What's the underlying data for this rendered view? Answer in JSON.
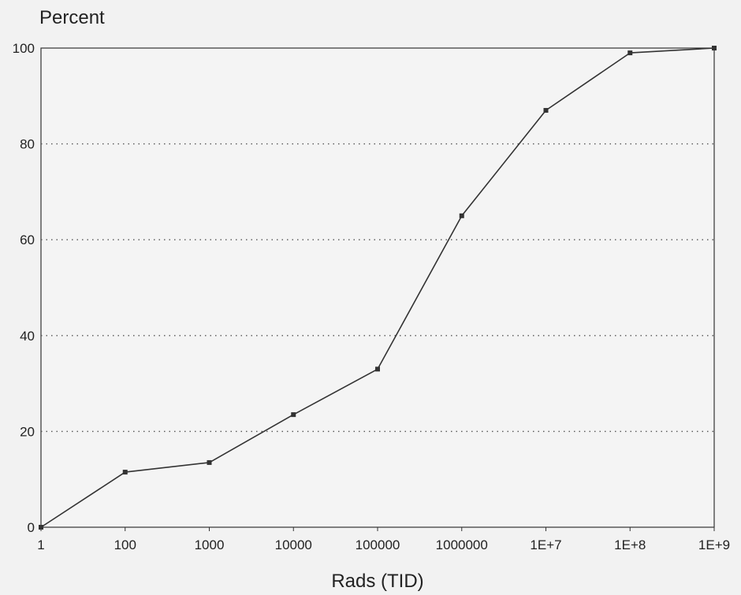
{
  "chart_data": {
    "type": "line",
    "title": "",
    "ylabel": "Percent",
    "xlabel": "Rads (TID)",
    "x_scale": "log",
    "x_tick_labels": [
      "1",
      "100",
      "1000",
      "10000",
      "100000",
      "1000000",
      "1E+7",
      "1E+8",
      "1E+9"
    ],
    "y_ticks": [
      0,
      20,
      40,
      60,
      80,
      100
    ],
    "ylim": [
      0,
      100
    ],
    "grid": "horizontal dotted",
    "series": [
      {
        "x": [
          1,
          100,
          1000,
          10000,
          100000,
          1000000,
          10000000,
          100000000,
          1000000000
        ],
        "values": [
          0,
          11.5,
          13.5,
          23.5,
          33,
          65,
          87,
          99,
          100
        ]
      }
    ],
    "colors": {
      "line": "#333333",
      "grid": "#555555",
      "plot_bg": "#f4f4f4"
    }
  }
}
